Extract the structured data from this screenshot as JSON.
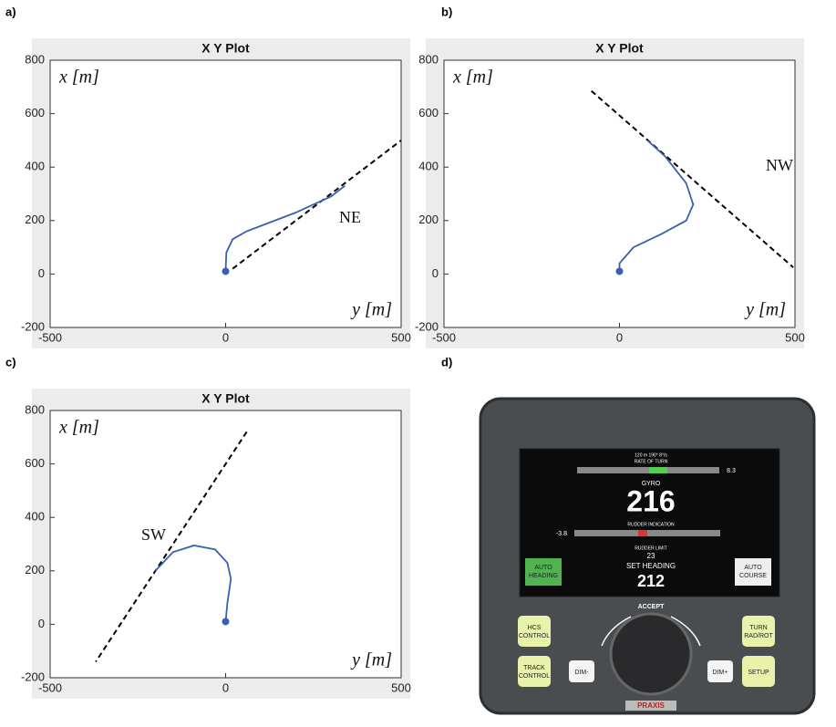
{
  "panel_labels": [
    "a)",
    "b)",
    "c)",
    "d)"
  ],
  "chart_data": [
    {
      "type": "line",
      "title": "X Y Plot",
      "xlabel": "y [m]",
      "ylabel": "x [m]",
      "annotation": "NE",
      "xlim": [
        -500,
        500
      ],
      "ylim": [
        -200,
        800
      ],
      "xticks": [
        -500,
        0,
        500
      ],
      "yticks": [
        -200,
        0,
        200,
        400,
        600,
        800
      ],
      "series": [
        {
          "color": "#000000",
          "dash": true,
          "x": [
            20,
            500
          ],
          "values": [
            20,
            500
          ]
        },
        {
          "color": "#3a5fb0",
          "dash": false,
          "x": [
            0,
            2,
            20,
            60,
            120,
            200,
            300,
            340
          ],
          "values": [
            10,
            80,
            130,
            160,
            190,
            230,
            290,
            330
          ]
        }
      ]
    },
    {
      "type": "line",
      "title": "X Y Plot",
      "xlabel": "y [m]",
      "ylabel": "x [m]",
      "annotation": "NW",
      "xlim": [
        -500,
        500
      ],
      "ylim": [
        -200,
        800
      ],
      "xticks": [
        -500,
        0,
        500
      ],
      "yticks": [
        -200,
        0,
        200,
        400,
        600,
        800
      ],
      "series": [
        {
          "color": "#000000",
          "dash": true,
          "x": [
            -80,
            495
          ],
          "values": [
            685,
            25
          ]
        },
        {
          "color": "#3a5fb0",
          "dash": false,
          "x": [
            0,
            0,
            40,
            120,
            190,
            210,
            190,
            130,
            80
          ],
          "values": [
            10,
            40,
            100,
            150,
            200,
            260,
            340,
            440,
            500
          ]
        }
      ]
    },
    {
      "type": "line",
      "title": "X Y Plot",
      "xlabel": "y [m]",
      "ylabel": "x [m]",
      "annotation": "SW",
      "xlim": [
        -500,
        500
      ],
      "ylim": [
        -200,
        800
      ],
      "xticks": [
        -500,
        0,
        500
      ],
      "yticks": [
        -200,
        0,
        200,
        400,
        600,
        800
      ],
      "series": [
        {
          "color": "#000000",
          "dash": true,
          "x": [
            60,
            -370
          ],
          "values": [
            720,
            -140
          ]
        },
        {
          "color": "#3a5fb0",
          "dash": false,
          "x": [
            0,
            5,
            15,
            5,
            -30,
            -90,
            -150,
            -200
          ],
          "values": [
            10,
            80,
            170,
            230,
            280,
            295,
            270,
            200
          ]
        }
      ]
    }
  ],
  "device": {
    "range": "120 m   190°   8°/s",
    "rate_of_turn_label": "RATE OF TURN",
    "rate_of_turn": "8.3",
    "gyro_label": "GYRO",
    "gyro": "216",
    "rudder_indication_label": "RUDDER INDICATION",
    "rudder": "-3.8",
    "rudder_limit_label": "RUDDER LIMIT",
    "rudder_limit": "23",
    "set_heading_label": "SET HEADING",
    "set_heading": "212",
    "accept": "ACCEPT",
    "buttons": [
      [
        "AUTO",
        "HEADING"
      ],
      [
        "AUTO",
        "COURSE"
      ],
      [
        "HCS",
        "CONTROL"
      ],
      [
        "TRACK",
        "CONTROL"
      ],
      [
        "DIM-"
      ],
      [
        "DIM+"
      ],
      [
        "TURN",
        "RAD/ROT"
      ],
      [
        "SETUP"
      ]
    ],
    "brand": "PRAXIS"
  }
}
